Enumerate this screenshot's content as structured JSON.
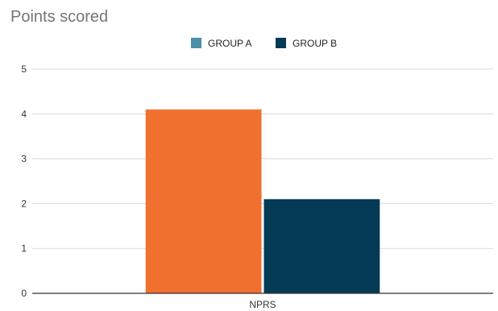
{
  "chart_data": {
    "type": "bar",
    "title": "Points scored",
    "xlabel": "",
    "ylabel": "",
    "categories": [
      "NPRS"
    ],
    "series": [
      {
        "name": "GROUP A",
        "values": [
          4.1
        ],
        "color": "#f07030",
        "legend_color": "#4a90a8"
      },
      {
        "name": "GROUP B",
        "values": [
          2.1
        ],
        "color": "#053a57",
        "legend_color": "#053a57"
      }
    ],
    "ylim": [
      0,
      5
    ],
    "yticks": [
      "0",
      "1",
      "2",
      "3",
      "4",
      "5"
    ],
    "grid": true,
    "legend_position": "top-center"
  }
}
